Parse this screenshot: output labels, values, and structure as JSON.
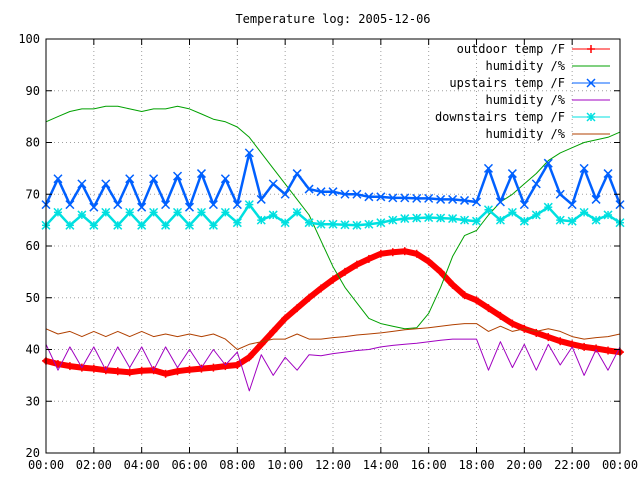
{
  "chart_data": {
    "type": "line",
    "title": "Temperature log: 2005-12-06",
    "xlabel": "",
    "ylabel": "",
    "xlim": [
      0,
      24
    ],
    "ylim": [
      20,
      100
    ],
    "grid": true,
    "legend_position": "top-right",
    "x_ticks": [
      "00:00",
      "02:00",
      "04:00",
      "06:00",
      "08:00",
      "10:00",
      "12:00",
      "14:00",
      "16:00",
      "18:00",
      "20:00",
      "22:00",
      "00:00"
    ],
    "y_ticks": [
      20,
      30,
      40,
      50,
      60,
      70,
      80,
      90,
      100
    ],
    "series": [
      {
        "name": "outdoor temp /F",
        "color": "#ff0000",
        "marker": "plus",
        "x": [
          0,
          0.5,
          1,
          1.5,
          2,
          2.5,
          3,
          3.5,
          4,
          4.5,
          5,
          5.5,
          6,
          6.5,
          7,
          7.5,
          8,
          8.5,
          9,
          9.5,
          10,
          10.5,
          11,
          11.5,
          12,
          12.5,
          13,
          13.5,
          14,
          14.5,
          15,
          15.5,
          16,
          16.5,
          17,
          17.5,
          18,
          18.5,
          19,
          19.5,
          20,
          20.5,
          21,
          21.5,
          22,
          22.5,
          23,
          23.5,
          24
        ],
        "y": [
          37.8,
          37.2,
          36.8,
          36.5,
          36.3,
          36,
          35.8,
          35.6,
          35.9,
          36,
          35.3,
          35.8,
          36.1,
          36.3,
          36.5,
          36.8,
          37,
          38.5,
          41,
          43.5,
          46,
          48,
          50,
          51.8,
          53.5,
          55,
          56.4,
          57.5,
          58.5,
          58.8,
          59,
          58.5,
          57,
          55,
          52.5,
          50.5,
          49.5,
          48,
          46.5,
          45,
          44,
          43.2,
          42.4,
          41.6,
          41,
          40.5,
          40.2,
          39.8,
          39.5
        ]
      },
      {
        "name": "humidity /%",
        "color": "#00a000",
        "marker": "none",
        "x": [
          0,
          0.5,
          1,
          1.5,
          2,
          2.5,
          3,
          3.5,
          4,
          4.5,
          5,
          5.5,
          6,
          6.5,
          7,
          7.5,
          8,
          8.5,
          9,
          9.5,
          10,
          10.5,
          11,
          11.5,
          12,
          12.5,
          13,
          13.5,
          14,
          14.5,
          15,
          15.5,
          16,
          16.5,
          17,
          17.5,
          18,
          18.5,
          19,
          19.5,
          20,
          20.5,
          21,
          21.5,
          22,
          22.5,
          23,
          23.5,
          24
        ],
        "y": [
          84,
          85,
          86,
          86.5,
          86.5,
          87,
          87,
          86.5,
          86,
          86.5,
          86.5,
          87,
          86.5,
          85.5,
          84.5,
          84,
          83,
          81,
          78,
          75,
          72,
          69,
          66,
          61,
          56,
          52,
          49,
          46,
          45,
          44.5,
          44,
          44.2,
          47,
          52,
          58,
          62,
          63,
          66,
          68.5,
          70,
          72,
          74,
          76.5,
          78,
          79,
          80,
          80.5,
          81,
          82
        ]
      },
      {
        "name": "upstairs temp /F",
        "color": "#0060ff",
        "marker": "cross",
        "x": [
          0,
          0.5,
          1,
          1.5,
          2,
          2.5,
          3,
          3.5,
          4,
          4.5,
          5,
          5.5,
          6,
          6.5,
          7,
          7.5,
          8,
          8.5,
          9,
          9.5,
          10,
          10.5,
          11,
          11.5,
          12,
          12.5,
          13,
          13.5,
          14,
          14.5,
          15,
          15.5,
          16,
          16.5,
          17,
          17.5,
          18,
          18.5,
          19,
          19.5,
          20,
          20.5,
          21,
          21.5,
          22,
          22.5,
          23,
          23.5,
          24
        ],
        "y": [
          68,
          73,
          68,
          72,
          67.5,
          72,
          68,
          73,
          67.5,
          73,
          68,
          73.5,
          67.5,
          74,
          68,
          73,
          68,
          78,
          69,
          72,
          70,
          74,
          71,
          70.5,
          70.5,
          70,
          70,
          69.5,
          69.5,
          69.3,
          69.3,
          69.2,
          69.2,
          69,
          69,
          68.8,
          68.5,
          75,
          68.5,
          74,
          68,
          72,
          76,
          70,
          68,
          75,
          69,
          74,
          68
        ]
      },
      {
        "name": "humidity /%",
        "color": "#a000c0",
        "marker": "none",
        "x": [
          0,
          0.5,
          1,
          1.5,
          2,
          2.5,
          3,
          3.5,
          4,
          4.5,
          5,
          5.5,
          6,
          6.5,
          7,
          7.5,
          8,
          8.5,
          9,
          9.5,
          10,
          10.5,
          11,
          11.5,
          12,
          12.5,
          13,
          13.5,
          14,
          14.5,
          15,
          15.5,
          16,
          16.5,
          17,
          17.5,
          18,
          18.5,
          19,
          19.5,
          20,
          20.5,
          21,
          21.5,
          22,
          22.5,
          23,
          23.5,
          24
        ],
        "y": [
          41,
          36,
          40.5,
          36.5,
          40.5,
          36,
          40.5,
          36.5,
          40.5,
          36,
          40.5,
          36.5,
          40,
          36.5,
          40,
          37,
          39.5,
          32,
          39,
          35,
          38.5,
          36,
          39,
          38.8,
          39.2,
          39.5,
          39.8,
          40,
          40.5,
          40.8,
          41,
          41.2,
          41.5,
          41.8,
          42,
          42,
          42,
          36,
          41.5,
          36.5,
          41,
          36,
          41,
          37,
          40.5,
          35,
          40,
          36,
          40.5
        ]
      },
      {
        "name": "downstairs temp /F",
        "color": "#00e0e0",
        "marker": "star",
        "x": [
          0,
          0.5,
          1,
          1.5,
          2,
          2.5,
          3,
          3.5,
          4,
          4.5,
          5,
          5.5,
          6,
          6.5,
          7,
          7.5,
          8,
          8.5,
          9,
          9.5,
          10,
          10.5,
          11,
          11.5,
          12,
          12.5,
          13,
          13.5,
          14,
          14.5,
          15,
          15.5,
          16,
          16.5,
          17,
          17.5,
          18,
          18.5,
          19,
          19.5,
          20,
          20.5,
          21,
          21.5,
          22,
          22.5,
          23,
          23.5,
          24
        ],
        "y": [
          64,
          66.5,
          64,
          66,
          64,
          66.5,
          64,
          66.5,
          64,
          66.5,
          64,
          66.5,
          64,
          66.5,
          64,
          66.5,
          64.5,
          68,
          65,
          66,
          64.5,
          66.5,
          64.5,
          64.2,
          64.2,
          64.1,
          64,
          64.2,
          64.5,
          65,
          65.3,
          65.4,
          65.5,
          65.4,
          65.3,
          65,
          64.8,
          67,
          65,
          66.5,
          64.8,
          66,
          67.5,
          65,
          64.8,
          66.5,
          65,
          66,
          64.5
        ]
      },
      {
        "name": "humidity /%",
        "color": "#b04000",
        "marker": "none",
        "x": [
          0,
          0.5,
          1,
          1.5,
          2,
          2.5,
          3,
          3.5,
          4,
          4.5,
          5,
          5.5,
          6,
          6.5,
          7,
          7.5,
          8,
          8.5,
          9,
          9.5,
          10,
          10.5,
          11,
          11.5,
          12,
          12.5,
          13,
          13.5,
          14,
          14.5,
          15,
          15.5,
          16,
          16.5,
          17,
          17.5,
          18,
          18.5,
          19,
          19.5,
          20,
          20.5,
          21,
          21.5,
          22,
          22.5,
          23,
          23.5,
          24
        ],
        "y": [
          44,
          43,
          43.5,
          42.5,
          43.5,
          42.5,
          43.5,
          42.5,
          43.5,
          42.5,
          43,
          42.5,
          43,
          42.5,
          43,
          42,
          40,
          41,
          41.5,
          42,
          42,
          43,
          42,
          42,
          42.3,
          42.5,
          42.8,
          43,
          43.2,
          43.5,
          43.8,
          44,
          44.2,
          44.5,
          44.8,
          45,
          45,
          43.5,
          44.5,
          43.5,
          44,
          43.5,
          44,
          43.5,
          42.5,
          42,
          42.3,
          42.5,
          43
        ]
      }
    ]
  }
}
